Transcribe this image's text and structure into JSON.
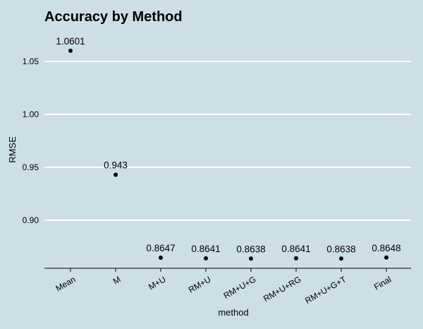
{
  "chart_data": {
    "type": "scatter",
    "title": "Accuracy by Method",
    "xlabel": "method",
    "ylabel": "RMSE",
    "categories": [
      "Mean",
      "M",
      "M+U",
      "RM+U",
      "RM+U+G",
      "RM+U+RG",
      "RM+U+G+T",
      "Final"
    ],
    "values": [
      1.0601,
      0.943,
      0.8647,
      0.8641,
      0.8638,
      0.8641,
      0.8638,
      0.8648
    ],
    "data_labels": [
      "1.0601",
      "0.943",
      "0.8647",
      "0.8641",
      "0.8638",
      "0.8641",
      "0.8638",
      "0.8648"
    ],
    "yticks": [
      0.9,
      0.95,
      1.0,
      1.05
    ],
    "ytick_labels": [
      "0.90",
      "0.95",
      "1.00",
      "1.05"
    ],
    "ylim": [
      0.855,
      1.0705
    ],
    "grid": "horizontal-major",
    "legend": "none",
    "colors": {
      "background": "#cddfe6",
      "gridline": "#ffffff",
      "point": "#000000",
      "axis": "#000000"
    }
  }
}
